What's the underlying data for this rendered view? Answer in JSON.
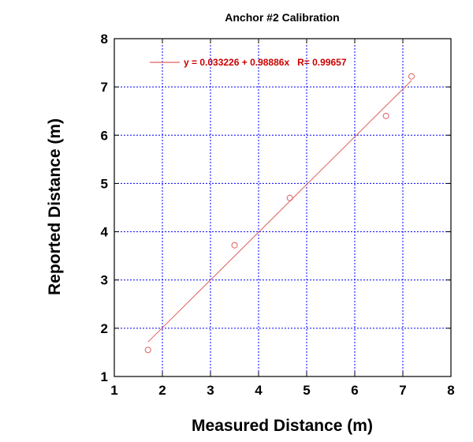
{
  "chart_data": {
    "type": "scatter",
    "title": "Anchor #2 Calibration",
    "xlabel": "Measured Distance (m)",
    "ylabel": "Reported Distance (m)",
    "xlim": [
      1,
      8
    ],
    "ylim": [
      1,
      8
    ],
    "xticks": [
      "1",
      "2",
      "3",
      "4",
      "5",
      "6",
      "7",
      "8"
    ],
    "yticks": [
      "1",
      "2",
      "3",
      "4",
      "5",
      "6",
      "7",
      "8"
    ],
    "grid": true,
    "legend_position": "top-left",
    "series": [
      {
        "kind": "points",
        "x": [
          1.7,
          3.5,
          4.65,
          6.65,
          7.18
        ],
        "y": [
          1.55,
          3.72,
          4.7,
          6.4,
          7.22
        ]
      },
      {
        "kind": "fit-line",
        "label": "y = 0.033226 + 0.98886x   R= 0.99657",
        "x": [
          1.7,
          7.18
        ],
        "y": [
          1.714288,
          7.133241
        ]
      }
    ],
    "colors": {
      "series": "#e06060",
      "legend_text": "#cc0000",
      "grid": "#0000ff",
      "axes": "#000000"
    }
  }
}
